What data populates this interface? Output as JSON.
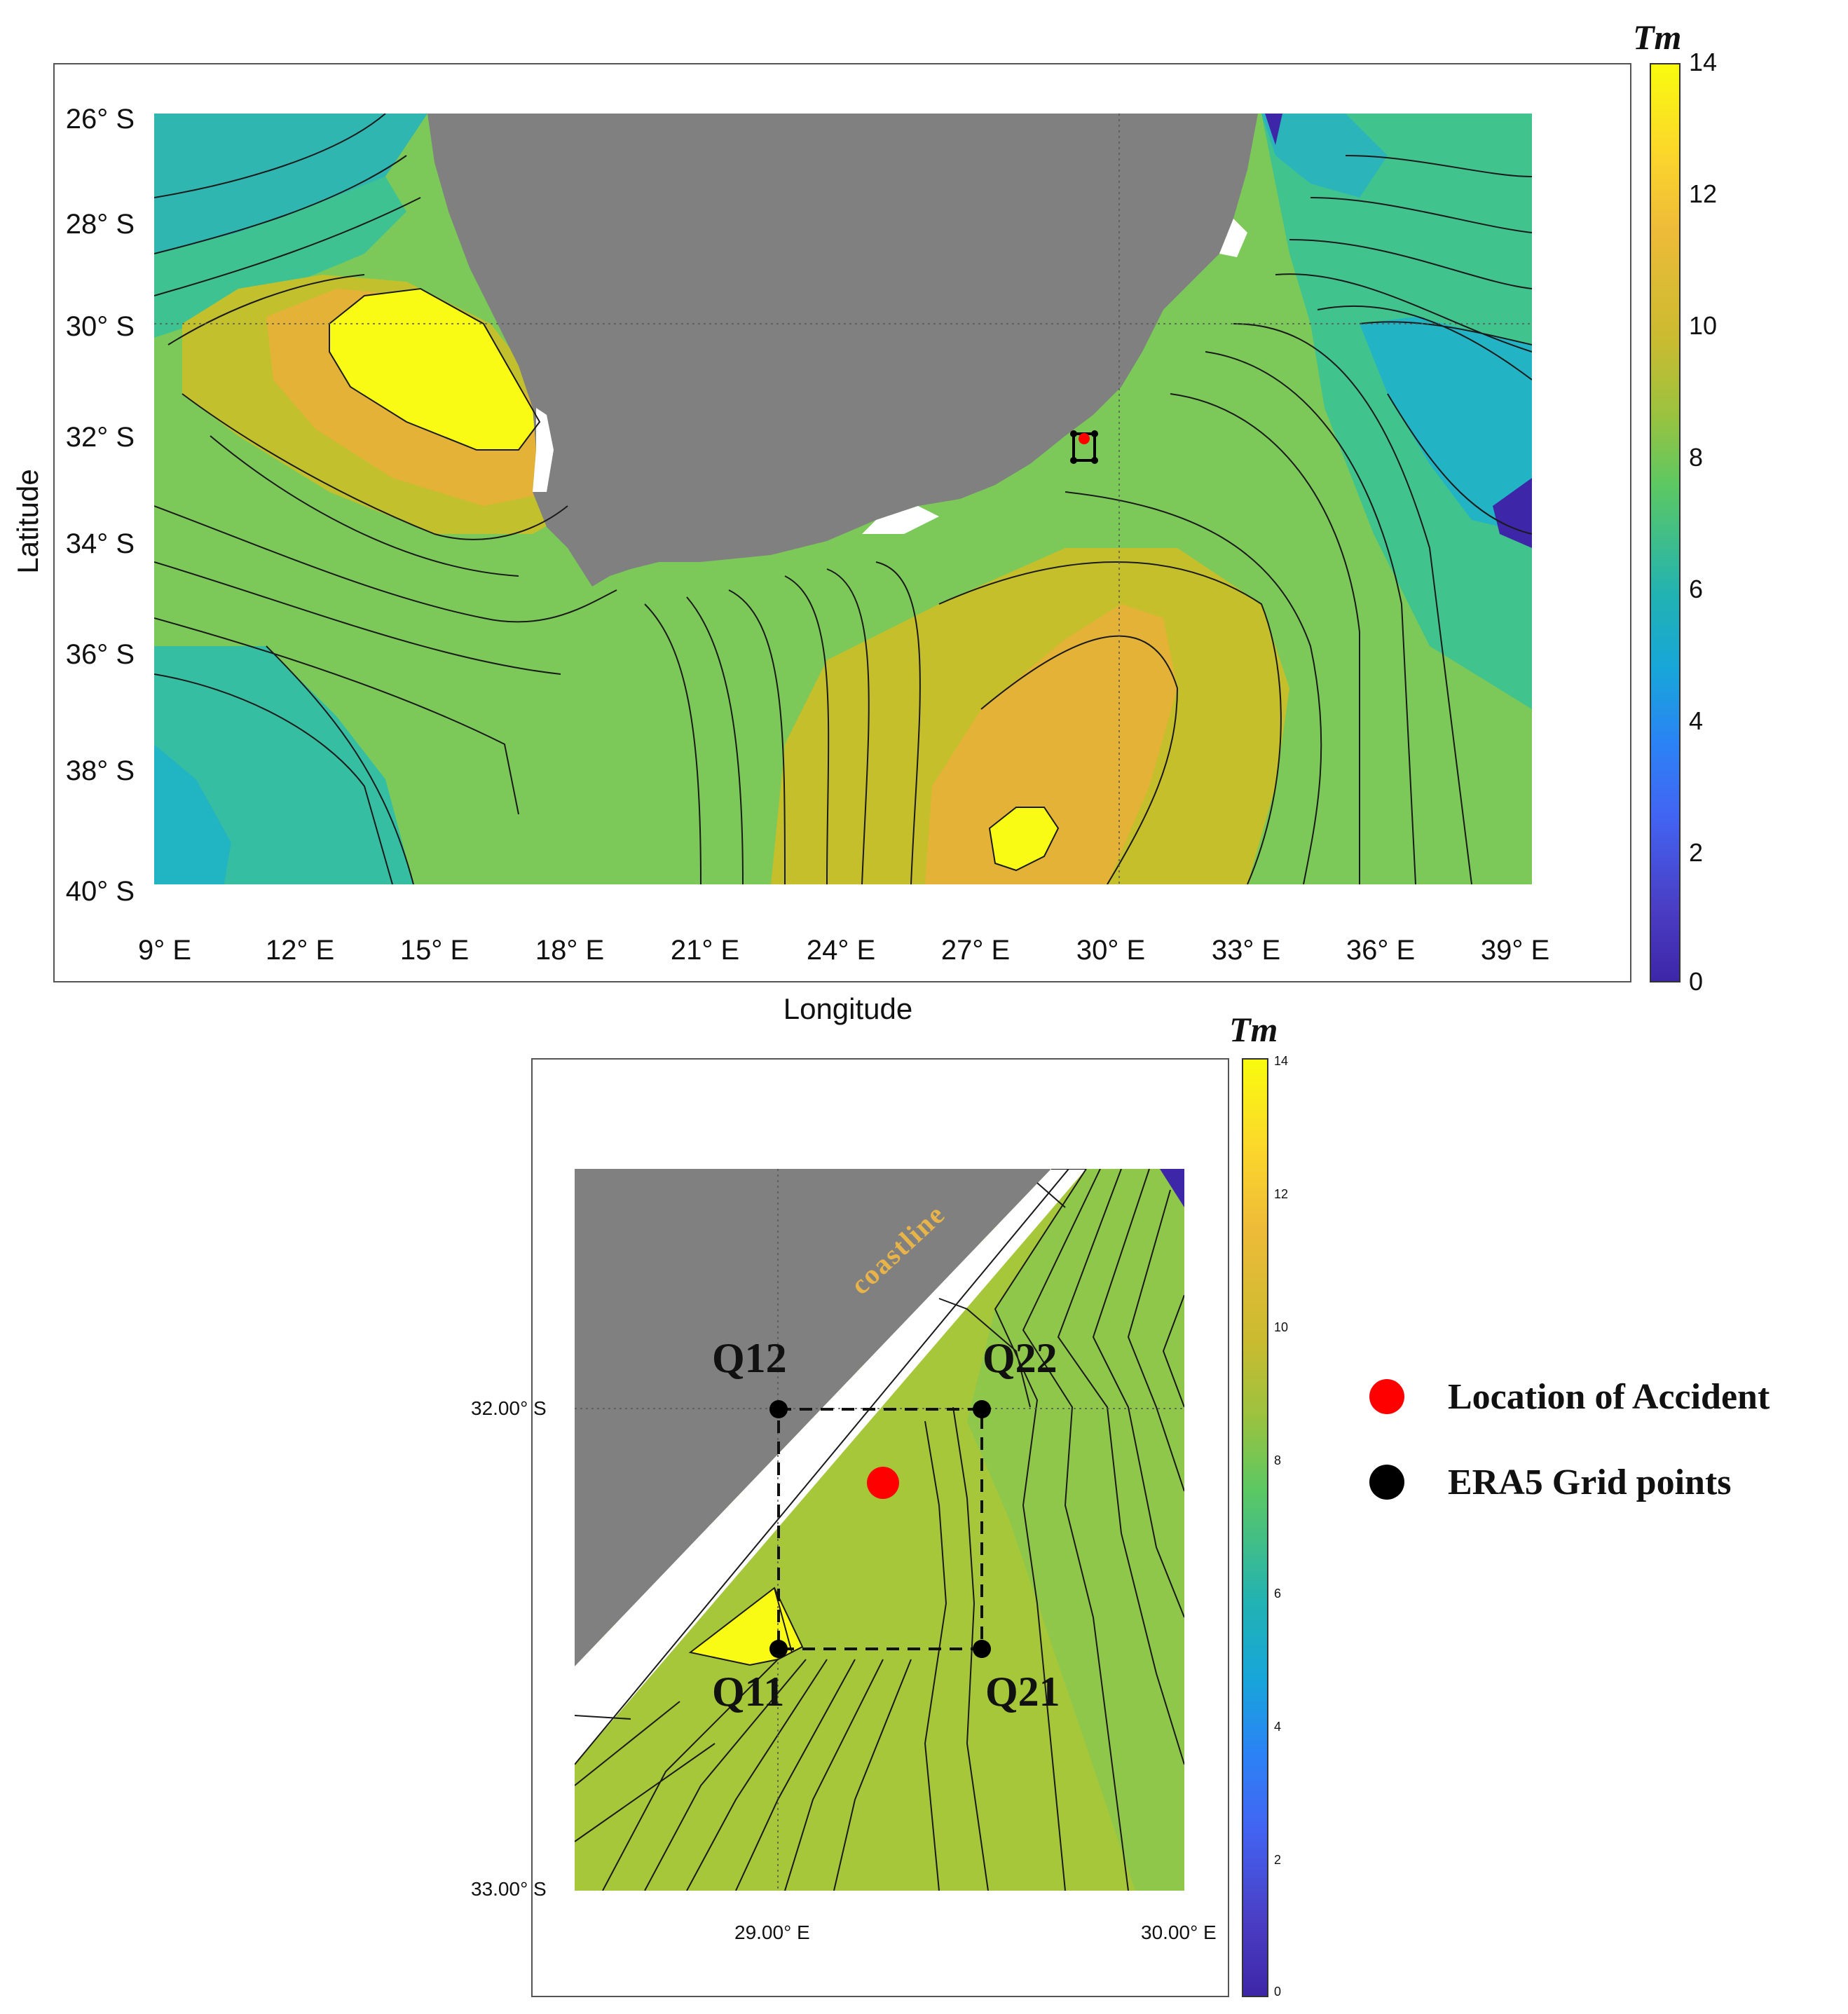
{
  "top_map": {
    "xlabel": "Longitude",
    "ylabel": "Latitude",
    "x_ticks": [
      "9° E",
      "12° E",
      "15° E",
      "18° E",
      "21° E",
      "24° E",
      "27° E",
      "30° E",
      "33° E",
      "36° E",
      "39° E"
    ],
    "y_ticks": [
      "26° S",
      "28° S",
      "30° S",
      "32° S",
      "34° S",
      "36° S",
      "38° S",
      "40° S"
    ],
    "colorbar": {
      "title": "Tm",
      "ticks": [
        "14",
        "12",
        "10",
        "8",
        "6",
        "4",
        "2",
        "0"
      ],
      "range": [
        0,
        14
      ]
    },
    "lon_range": [
      9,
      39
    ],
    "lat_range": [
      -40,
      -26
    ],
    "colors": {
      "land": "#808080",
      "high": "#f9fb15",
      "mid": "#e6b536",
      "low": "#2fb6c0",
      "min": "#3e26a8"
    }
  },
  "inset_map": {
    "colorbar": {
      "title": "Tm",
      "ticks": [
        "14",
        "12",
        "10",
        "8",
        "6",
        "4",
        "2",
        "0"
      ]
    },
    "x_ticks": [
      "29.00° E",
      "30.00° E"
    ],
    "y_ticks": [
      "32.00° S",
      "33.00° S"
    ],
    "annotation": "coastline",
    "points": {
      "Q12": {
        "label": "Q12",
        "lon": 29.0,
        "lat": -32.0
      },
      "Q22": {
        "label": "Q22",
        "lon": 29.5,
        "lat": -32.0
      },
      "Q11": {
        "label": "Q11",
        "lon": 29.0,
        "lat": -32.5
      },
      "Q21": {
        "label": "Q21",
        "lon": 29.5,
        "lat": -32.5
      },
      "accident": {
        "lon": 29.25,
        "lat": -32.15
      }
    }
  },
  "legend": {
    "items": [
      {
        "label": "Location of Accident",
        "color": "#ff0000"
      },
      {
        "label": "ERA5 Grid points",
        "color": "#000000"
      }
    ]
  }
}
